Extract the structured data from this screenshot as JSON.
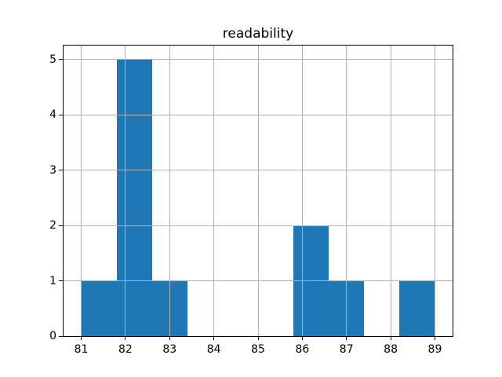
{
  "chart_data": {
    "type": "bar",
    "subtype": "histogram",
    "title": "readability",
    "xlabel": "",
    "ylabel": "",
    "xlim": [
      80.6,
      89.4
    ],
    "ylim": [
      0,
      5.25
    ],
    "x_ticks": [
      81,
      82,
      83,
      84,
      85,
      86,
      87,
      88,
      89
    ],
    "y_ticks": [
      0,
      1,
      2,
      3,
      4,
      5
    ],
    "grid": true,
    "grid_above_bars": true,
    "legend": false,
    "bin_width": 0.8,
    "total_count": 11,
    "bins": [
      {
        "start": 81.0,
        "end": 81.8,
        "count": 1
      },
      {
        "start": 81.8,
        "end": 82.6,
        "count": 5
      },
      {
        "start": 82.6,
        "end": 83.4,
        "count": 1
      },
      {
        "start": 83.4,
        "end": 84.2,
        "count": 0
      },
      {
        "start": 84.2,
        "end": 85.0,
        "count": 0
      },
      {
        "start": 85.0,
        "end": 85.8,
        "count": 0
      },
      {
        "start": 85.8,
        "end": 86.6,
        "count": 2
      },
      {
        "start": 86.6,
        "end": 87.4,
        "count": 1
      },
      {
        "start": 87.4,
        "end": 88.2,
        "count": 0
      },
      {
        "start": 88.2,
        "end": 89.0,
        "count": 1
      }
    ],
    "colors": {
      "bar": "#1f77b4",
      "grid": "#b0b0b0",
      "spine": "#000000",
      "text": "#000000",
      "background": "#ffffff"
    }
  }
}
